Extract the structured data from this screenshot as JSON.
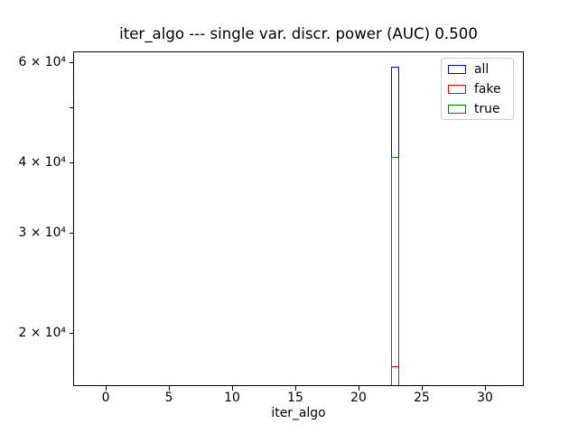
{
  "figure": {
    "background": "#ffffff",
    "spine_color": "#000000",
    "text_color": "#000000"
  },
  "chart_data": {
    "type": "bar",
    "subtype": "histogram",
    "title": "iter_algo --- single var. discr. power (AUC) 0.500",
    "xlabel": "iter_algo",
    "ylabel": "",
    "xscale": "linear",
    "yscale": "log",
    "xlim": [
      -2.5,
      33.0
    ],
    "ylim": [
      16180,
      62440
    ],
    "grid": false,
    "legend_position": "upper right",
    "x_ticks": [
      {
        "value": 0,
        "label": "0"
      },
      {
        "value": 5,
        "label": "5"
      },
      {
        "value": 10,
        "label": "10"
      },
      {
        "value": 15,
        "label": "15"
      },
      {
        "value": 20,
        "label": "20"
      },
      {
        "value": 25,
        "label": "25"
      },
      {
        "value": 30,
        "label": "30"
      }
    ],
    "y_ticks": [
      {
        "value": 60000,
        "label": "6 × 10⁴"
      },
      {
        "value": 50000,
        "label": ""
      },
      {
        "value": 40000,
        "label": "4 × 10⁴"
      },
      {
        "value": 30000,
        "label": "3 × 10⁴"
      },
      {
        "value": 20000,
        "label": "2 × 10⁴"
      }
    ],
    "series": [
      {
        "name": "all",
        "color": "#0000ff",
        "bin_range": [
          22.56,
          23.2
        ],
        "count": 58900
      },
      {
        "name": "fake",
        "color": "#ff0000",
        "bin_range": [
          22.56,
          23.2
        ],
        "count": 17500
      },
      {
        "name": "true",
        "color": "#008000",
        "bin_range": [
          22.56,
          23.2
        ],
        "count": 40900
      }
    ]
  },
  "legend": {
    "border_color": "#cccccc",
    "entries": [
      {
        "label": "all",
        "color": "#0000ff"
      },
      {
        "label": "fake",
        "color": "#ff0000"
      },
      {
        "label": "true",
        "color": "#008000"
      }
    ]
  }
}
